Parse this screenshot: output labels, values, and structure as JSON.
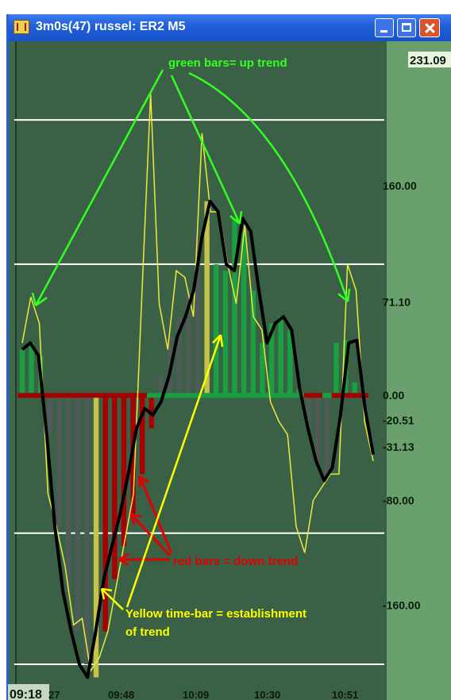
{
  "window": {
    "title": "3m0s(47) russel: ER2 M5",
    "last_price": "231.09"
  },
  "icons": {
    "app": "chart-app-icon",
    "minimize": "minimize-icon",
    "maximize": "maximize-icon",
    "close": "close-icon"
  },
  "colors": {
    "up_bar": "#1aa040",
    "down_bar": "#a80000",
    "neutral_bar": "#505a58",
    "yellow_bar": "#c6c24a",
    "main_line": "#000000",
    "signal_line": "#eaea3a",
    "green_annotation": "#33ff22",
    "red_annotation": "#e00000",
    "yellow_annotation": "#ffff00",
    "grid_line": "#ffffff",
    "zero_up": "#16a040",
    "zero_down": "#a80000"
  },
  "chart_data": {
    "type": "bar",
    "ylim": [
      -225,
      270
    ],
    "y_ticks": [
      {
        "value": 160,
        "label": "160.00"
      },
      {
        "value": 71.1,
        "label": "71.10"
      },
      {
        "value": 0,
        "label": "0.00"
      },
      {
        "value": -80,
        "label": "-80.00"
      },
      {
        "value": -160,
        "label": "-160.00"
      }
    ],
    "gridlines": [
      210,
      100,
      -105,
      -205
    ],
    "last_price_label": "231.09",
    "value_labels": [
      {
        "value": -10,
        "label": "-20.51"
      },
      {
        "value": -30,
        "label": "-31.13"
      }
    ],
    "x_ticks": [
      {
        "index": 0,
        "label": "09:18"
      },
      {
        "index": 0.5,
        "label": "27"
      },
      {
        "index": 7,
        "label": "09:48"
      },
      {
        "index": 15,
        "label": "10:09"
      },
      {
        "index": 23,
        "label": "10:30"
      },
      {
        "index": 32,
        "label": "10:51"
      }
    ],
    "x_count": 39,
    "oscillator": [
      35,
      40,
      30,
      -30,
      -100,
      -150,
      -180,
      -205,
      -215,
      -180,
      -140,
      -115,
      -90,
      -60,
      -25,
      -10,
      -15,
      -5,
      15,
      45,
      60,
      80,
      120,
      148,
      140,
      100,
      95,
      135,
      125,
      80,
      40,
      55,
      60,
      50,
      5,
      -25,
      -50,
      -65,
      -55,
      -15,
      40,
      42,
      -10,
      -45
    ],
    "signal": [
      40,
      75,
      55,
      -75,
      -100,
      -130,
      -175,
      -170,
      -210,
      -200,
      -180,
      -145,
      -110,
      -75,
      80,
      230,
      70,
      35,
      95,
      90,
      60,
      200,
      140,
      140,
      100,
      70,
      130,
      60,
      50,
      -5,
      -20,
      -30,
      -100,
      -120,
      -80,
      -70,
      -60,
      -60,
      100,
      80,
      -20,
      -50
    ],
    "histogram": [
      {
        "v": 35,
        "c": "up"
      },
      {
        "v": 40,
        "c": "up"
      },
      {
        "v": 30,
        "c": "up"
      },
      {
        "v": -30,
        "c": "neutral"
      },
      {
        "v": -100,
        "c": "neutral"
      },
      {
        "v": -150,
        "c": "neutral"
      },
      {
        "v": -180,
        "c": "neutral"
      },
      {
        "v": -205,
        "c": "neutral"
      },
      {
        "v": -215,
        "c": "yellow"
      },
      {
        "v": -180,
        "c": "down"
      },
      {
        "v": -140,
        "c": "down"
      },
      {
        "v": -115,
        "c": "down"
      },
      {
        "v": -90,
        "c": "down"
      },
      {
        "v": -60,
        "c": "down"
      },
      {
        "v": -25,
        "c": "down"
      },
      {
        "v": 15,
        "c": "neutral"
      },
      {
        "v": 45,
        "c": "neutral"
      },
      {
        "v": 60,
        "c": "neutral"
      },
      {
        "v": 80,
        "c": "neutral"
      },
      {
        "v": 120,
        "c": "neutral"
      },
      {
        "v": 148,
        "c": "yellow"
      },
      {
        "v": 100,
        "c": "up"
      },
      {
        "v": 95,
        "c": "up"
      },
      {
        "v": 135,
        "c": "up"
      },
      {
        "v": 125,
        "c": "up"
      },
      {
        "v": 80,
        "c": "up"
      },
      {
        "v": 40,
        "c": "up"
      },
      {
        "v": 55,
        "c": "up"
      },
      {
        "v": 60,
        "c": "up"
      },
      {
        "v": 50,
        "c": "up"
      },
      {
        "v": 5,
        "c": "up"
      },
      {
        "v": -25,
        "c": "neutral"
      },
      {
        "v": -50,
        "c": "neutral"
      },
      {
        "v": -65,
        "c": "neutral"
      },
      {
        "v": 40,
        "c": "up"
      },
      {
        "v": 42,
        "c": "up"
      },
      {
        "v": 10,
        "c": "up"
      },
      {
        "v": -10,
        "c": "neutral"
      }
    ],
    "zero_segments": [
      {
        "from": 0,
        "to": 14,
        "c": "down"
      },
      {
        "from": 14,
        "to": 31,
        "c": "up"
      },
      {
        "from": 31,
        "to": 33,
        "c": "down"
      },
      {
        "from": 33,
        "to": 34,
        "c": "up"
      },
      {
        "from": 34,
        "to": 38,
        "c": "down"
      }
    ],
    "annotations": [
      {
        "text": "green bars= up trend",
        "kind": "green"
      },
      {
        "text": "red bars = down trend",
        "kind": "red"
      },
      {
        "text": "Yellow time-bar = establishment",
        "kind": "yellow"
      },
      {
        "text": "of trend",
        "kind": "yellow"
      }
    ]
  }
}
